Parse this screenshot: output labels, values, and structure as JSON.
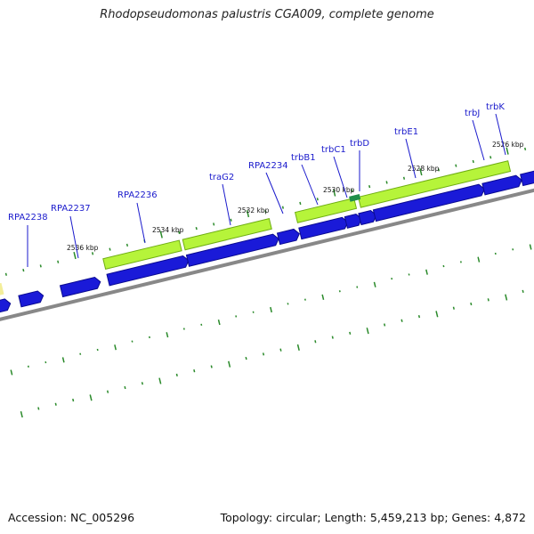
{
  "title": "Rhodopseudomonas palustris CGA009, complete genome",
  "footer": {
    "accession": "Accession: NC_005296",
    "summary": "Topology: circular; Length: 5,459,213 bp; Genes: 4,872"
  },
  "colors": {
    "cds": "#1a1ad8",
    "cds_dark": "#0a0a90",
    "gene": "#b6f43a",
    "gene_edge": "#6fae12",
    "gene_pale": "#f3ee9a",
    "backbone": "#888888",
    "tick": "#2a8a2a",
    "label": "#1a1acc"
  },
  "ticks": [
    "2526 kbp",
    "2528 kbp",
    "2530 kbp",
    "2532 kbp",
    "2534 kbp",
    "2536 kbp"
  ],
  "genes": [
    "RPA2238",
    "RPA2237",
    "RPA2236",
    "traG2",
    "RPA2234",
    "trbB1",
    "trbC1",
    "trbD",
    "trbE1",
    "trbJ",
    "trbK"
  ]
}
